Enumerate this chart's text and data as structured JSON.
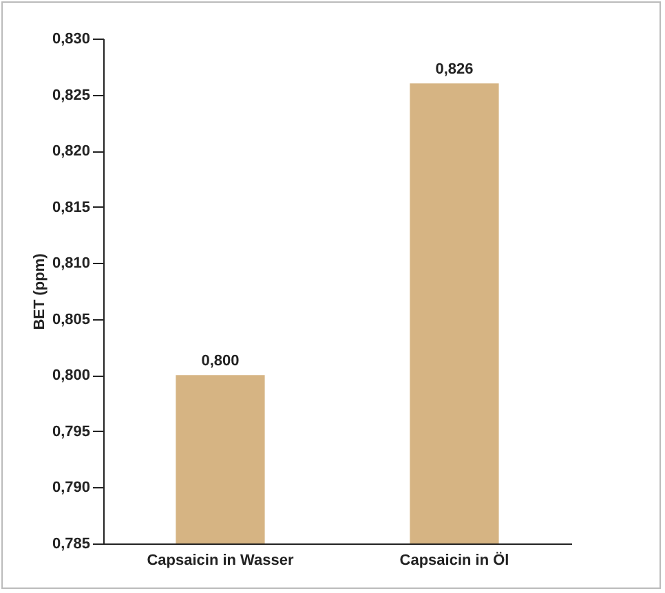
{
  "chart_data": {
    "type": "bar",
    "ylabel": "BET (ppm)",
    "categories": [
      "Capsaicin in Wasser",
      "Capsaicin in Öl"
    ],
    "values": [
      0.8,
      0.826
    ],
    "color": "#d6b483",
    "value_labels": [
      "0,800",
      "0,826"
    ],
    "ylim": [
      0.785,
      0.83
    ],
    "yticks": [
      {
        "value": 0.785,
        "label": "0,785"
      },
      {
        "value": 0.79,
        "label": "0,790"
      },
      {
        "value": 0.795,
        "label": "0,795"
      },
      {
        "value": 0.8,
        "label": "0,800"
      },
      {
        "value": 0.805,
        "label": "0,805"
      },
      {
        "value": 0.81,
        "label": "0,810"
      },
      {
        "value": 0.815,
        "label": "0,815"
      },
      {
        "value": 0.82,
        "label": "0,820"
      },
      {
        "value": 0.825,
        "label": "0,825"
      },
      {
        "value": 0.83,
        "label": "0,830"
      }
    ],
    "grid": false
  }
}
